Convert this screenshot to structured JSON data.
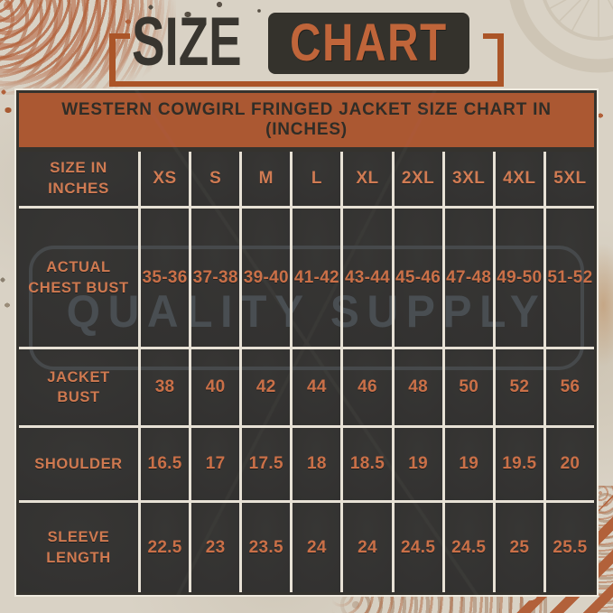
{
  "title": {
    "word_dark": "SIZE",
    "word_boxed": "CHART"
  },
  "banner": {
    "text": "WESTERN COWGIRL FRINGED JACKET SIZE CHART IN (INCHES)"
  },
  "watermark": {
    "text": "QUALITY SUPPLY"
  },
  "table": {
    "columns_label": "SIZE IN\nINCHES",
    "sizes": [
      "XS",
      "S",
      "M",
      "L",
      "XL",
      "2XL",
      "3XL",
      "4XL",
      "5XL"
    ],
    "rows": [
      {
        "label": "ACTUAL\nCHEST BUST",
        "values": [
          "35-36",
          "37-38",
          "39-40",
          "41-42",
          "43-44",
          "45-46",
          "47-48",
          "49-50",
          "51-52"
        ]
      },
      {
        "label": "JACKET\nBUST",
        "values": [
          "38",
          "40",
          "42",
          "44",
          "46",
          "48",
          "50",
          "52",
          "56"
        ]
      },
      {
        "label": "SHOULDER",
        "values": [
          "16.5",
          "17",
          "17.5",
          "18",
          "18.5",
          "19",
          "19",
          "19.5",
          "20"
        ]
      },
      {
        "label": "SLEEVE\nLENGTH",
        "values": [
          "22.5",
          "23",
          "23.5",
          "24",
          "24",
          "24.5",
          "24.5",
          "25",
          "25.5"
        ]
      }
    ]
  },
  "chart_data": {
    "type": "table",
    "title": "WESTERN COWGIRL FRINGED JACKET SIZE CHART IN (INCHES)",
    "unit": "inches",
    "columns": [
      "SIZE IN INCHES",
      "XS",
      "S",
      "M",
      "L",
      "XL",
      "2XL",
      "3XL",
      "4XL",
      "5XL"
    ],
    "rows": [
      [
        "ACTUAL CHEST BUST",
        "35-36",
        "37-38",
        "39-40",
        "41-42",
        "43-44",
        "45-46",
        "47-48",
        "49-50",
        "51-52"
      ],
      [
        "JACKET BUST",
        38,
        40,
        42,
        44,
        46,
        48,
        50,
        52,
        56
      ],
      [
        "SHOULDER",
        16.5,
        17,
        17.5,
        18,
        18.5,
        19,
        19,
        19.5,
        20
      ],
      [
        "SLEEVE LENGTH",
        22.5,
        23,
        23.5,
        24,
        24,
        24.5,
        24.5,
        25,
        25.5
      ]
    ]
  },
  "colors": {
    "background_beige": "#d9d2c5",
    "banner_orange": "#ab5832",
    "cell_charcoal": "#343431",
    "value_orange": "#ca7048",
    "title_dark": "#38352f",
    "bracket_orange": "#ab5528",
    "grid_line": "#e7e1d5",
    "watermark_gray": "#494e52"
  }
}
